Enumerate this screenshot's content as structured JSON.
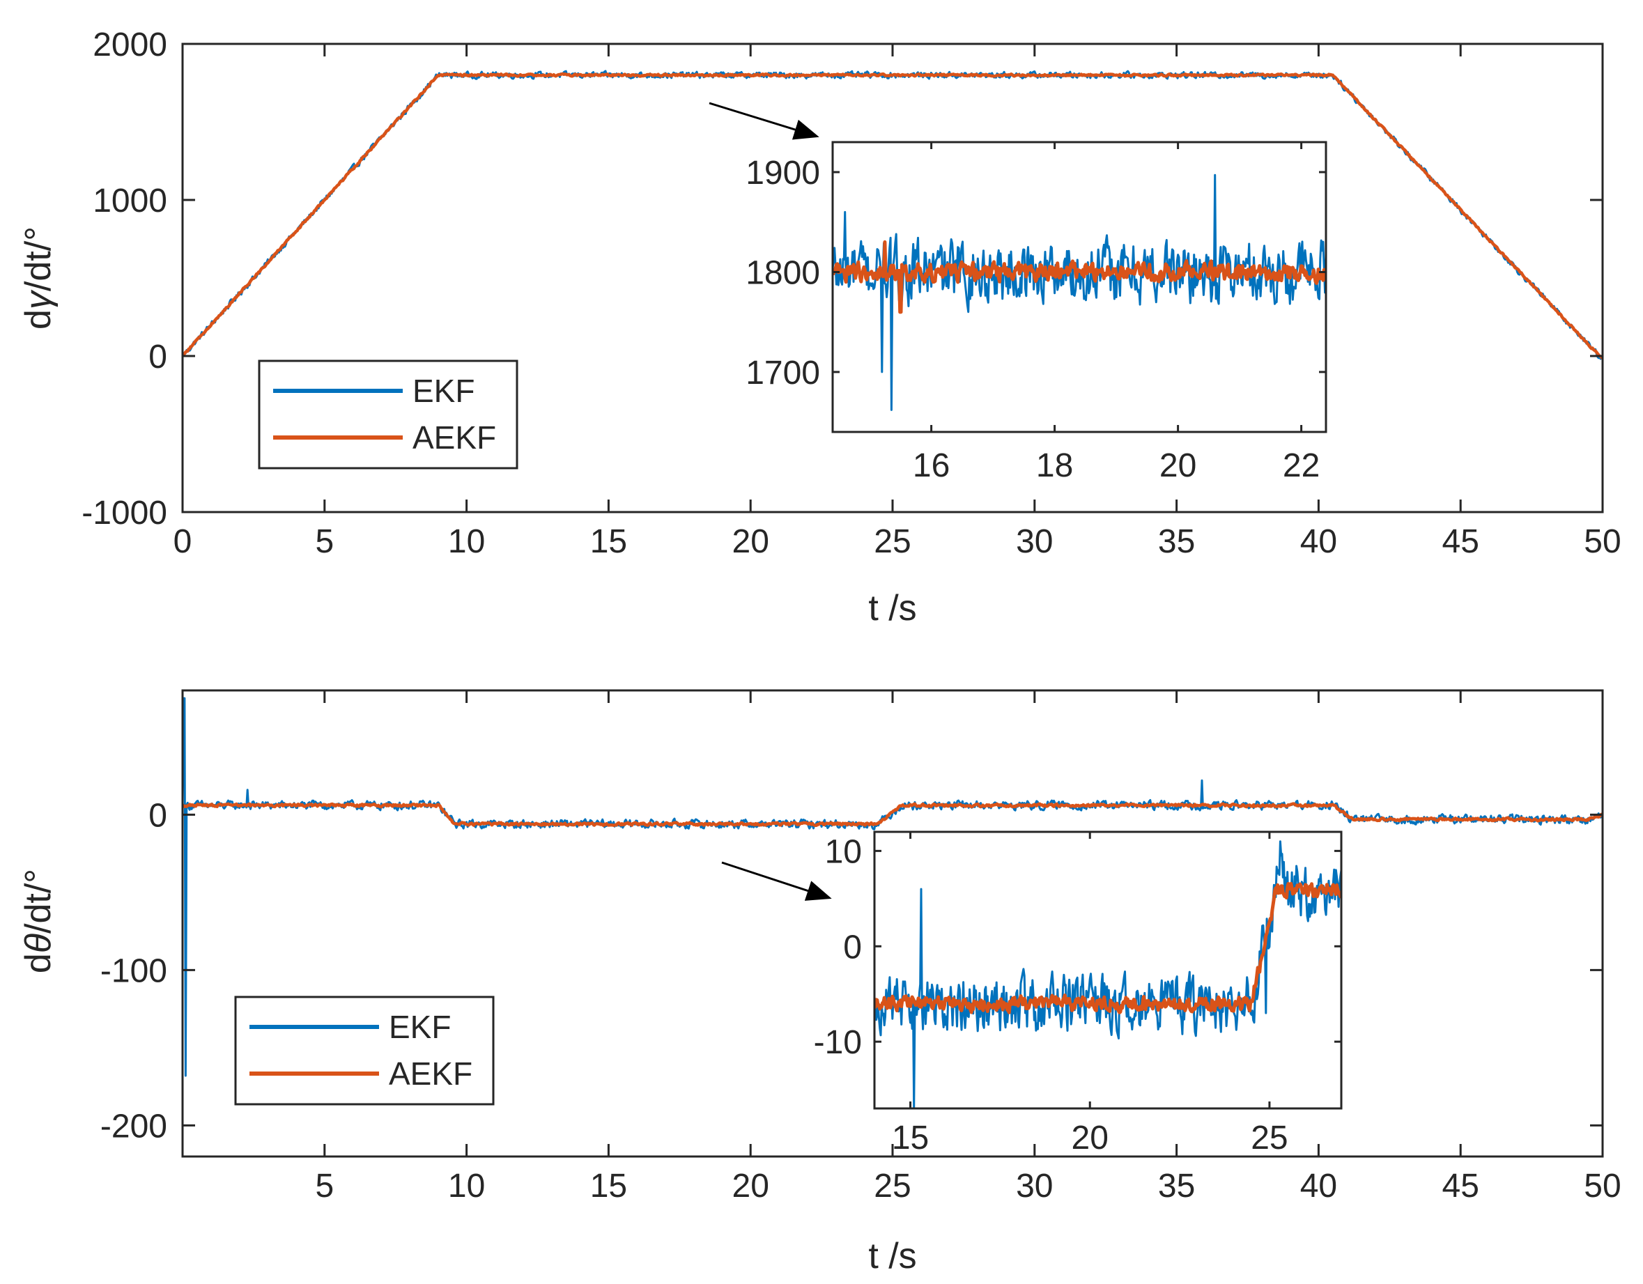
{
  "colors": {
    "ekf": "#0072BD",
    "aekf": "#D95319",
    "axis": "#262626",
    "arrow": "#000000"
  },
  "chart_data": [
    {
      "type": "line",
      "id": "top",
      "title": "",
      "xlabel": "t /s",
      "ylabel": "dγ/dt/°",
      "ylabel_parts": {
        "pre": "d",
        "sym": "γ",
        "post": "/dt/°"
      },
      "xlim": [
        0,
        50
      ],
      "ylim": [
        -1000,
        2000
      ],
      "xticks": [
        0,
        5,
        10,
        15,
        20,
        25,
        30,
        35,
        40,
        45,
        50
      ],
      "yticks": [
        -1000,
        0,
        1000,
        2000
      ],
      "legend": {
        "position": "lower-left",
        "entries": [
          "EKF",
          "AEKF"
        ]
      },
      "series": [
        {
          "name": "EKF",
          "profile": [
            [
              0,
              0
            ],
            [
              9,
              1800
            ],
            [
              40.5,
              1800
            ],
            [
              50,
              -20
            ]
          ],
          "noise_amplitude": 28
        },
        {
          "name": "AEKF",
          "profile": [
            [
              0,
              0
            ],
            [
              9,
              1800
            ],
            [
              40.5,
              1800
            ],
            [
              50,
              -20
            ]
          ],
          "noise_amplitude": 9
        }
      ],
      "inset": {
        "xlim": [
          14.4,
          22.4
        ],
        "ylim": [
          1640,
          1930
        ],
        "xticks": [
          16,
          18,
          20,
          22
        ],
        "yticks": [
          1700,
          1800,
          1900
        ],
        "series": [
          {
            "name": "EKF",
            "level": 1800,
            "noise_amplitude": 45,
            "spikes": [
              [
                15.35,
                1662
              ],
              [
                15.2,
                1700
              ],
              [
                20.6,
                1897
              ],
              [
                14.6,
                1860
              ]
            ]
          },
          {
            "name": "AEKF",
            "level": 1800,
            "noise_amplitude": 13,
            "spikes": [
              [
                15.25,
                1830
              ],
              [
                15.5,
                1760
              ]
            ]
          }
        ]
      }
    },
    {
      "type": "line",
      "id": "bottom",
      "title": "",
      "xlabel": "t /s",
      "ylabel": "dθ/dt/°",
      "ylabel_parts": {
        "pre": "d",
        "sym": "θ",
        "post": "/dt/°"
      },
      "xlim": [
        0,
        50
      ],
      "ylim": [
        -220,
        80
      ],
      "xticks": [
        5,
        10,
        15,
        20,
        25,
        30,
        35,
        40,
        45,
        50
      ],
      "yticks": [
        -200,
        -100,
        0
      ],
      "legend": {
        "position": "lower-left",
        "entries": [
          "EKF",
          "AEKF"
        ]
      },
      "series": [
        {
          "name": "EKF",
          "profile": [
            [
              0,
              6
            ],
            [
              9,
              6
            ],
            [
              9.6,
              -6
            ],
            [
              24.5,
              -6
            ],
            [
              25.3,
              6
            ],
            [
              40.5,
              6
            ],
            [
              41.2,
              -3
            ],
            [
              49.5,
              -3
            ],
            [
              50,
              0
            ]
          ],
          "noise_amplitude": 4,
          "spikes": [
            [
              0.05,
              75
            ],
            [
              0.1,
              -168
            ],
            [
              2.3,
              16
            ],
            [
              35.9,
              22
            ]
          ]
        },
        {
          "name": "AEKF",
          "profile": [
            [
              0,
              6
            ],
            [
              9,
              6
            ],
            [
              9.6,
              -6
            ],
            [
              24.5,
              -6
            ],
            [
              25.3,
              6
            ],
            [
              40.5,
              6
            ],
            [
              41.2,
              -3
            ],
            [
              49.5,
              -3
            ],
            [
              50,
              0
            ]
          ],
          "noise_amplitude": 1.2
        }
      ],
      "inset": {
        "xlim": [
          14,
          27
        ],
        "ylim": [
          -17,
          12
        ],
        "xticks": [
          15,
          20,
          25
        ],
        "yticks": [
          -10,
          0,
          10
        ],
        "series": [
          {
            "name": "EKF",
            "profile": [
              [
                14,
                -6
              ],
              [
                24.5,
                -6
              ],
              [
                25.2,
                6
              ],
              [
                27,
                6
              ]
            ],
            "noise_amplitude": 4.2,
            "spikes": [
              [
                15.3,
                6
              ],
              [
                15.1,
                -17
              ],
              [
                25.3,
                11
              ],
              [
                24.9,
                -7
              ]
            ]
          },
          {
            "name": "AEKF",
            "profile": [
              [
                14,
                -6
              ],
              [
                24.5,
                -6
              ],
              [
                25.2,
                6
              ],
              [
                27,
                6
              ]
            ],
            "noise_amplitude": 1.1
          }
        ]
      }
    }
  ]
}
